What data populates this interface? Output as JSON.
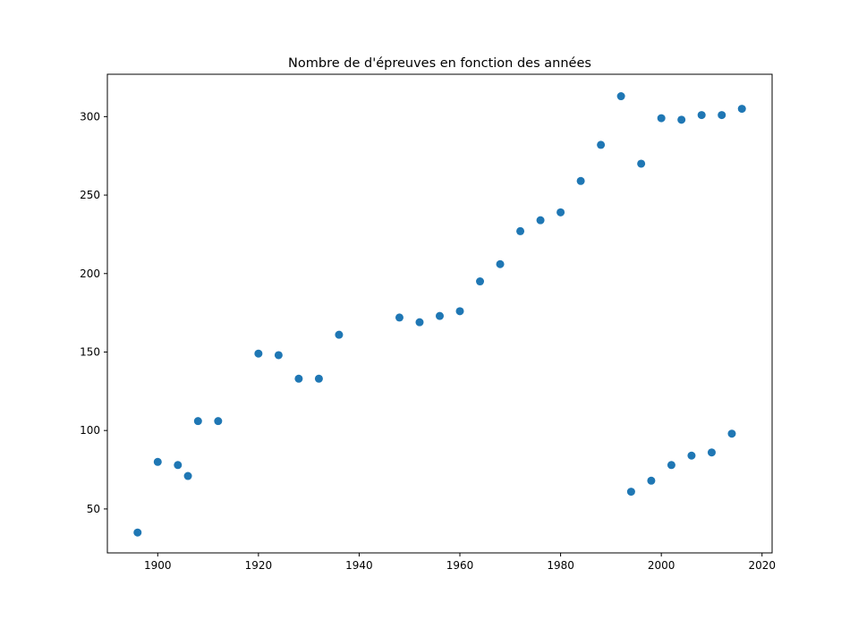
{
  "chart_data": {
    "type": "scatter",
    "title": "Nombre de d'épreuves en fonction des années",
    "xlabel": "",
    "ylabel": "",
    "xlim": [
      1890,
      2022
    ],
    "ylim": [
      22,
      327
    ],
    "x_ticks": [
      1900,
      1920,
      1940,
      1960,
      1980,
      2000,
      2020
    ],
    "y_ticks": [
      50,
      100,
      150,
      200,
      250,
      300
    ],
    "grid": false,
    "legend": "none",
    "marker_color": "#1f77b4",
    "series": [
      {
        "points": [
          {
            "x": 1896,
            "y": 35
          },
          {
            "x": 1900,
            "y": 80
          },
          {
            "x": 1904,
            "y": 78
          },
          {
            "x": 1906,
            "y": 71
          },
          {
            "x": 1908,
            "y": 106
          },
          {
            "x": 1912,
            "y": 106
          },
          {
            "x": 1920,
            "y": 149
          },
          {
            "x": 1924,
            "y": 148
          },
          {
            "x": 1928,
            "y": 133
          },
          {
            "x": 1932,
            "y": 133
          },
          {
            "x": 1936,
            "y": 161
          },
          {
            "x": 1948,
            "y": 172
          },
          {
            "x": 1952,
            "y": 169
          },
          {
            "x": 1956,
            "y": 173
          },
          {
            "x": 1960,
            "y": 176
          },
          {
            "x": 1964,
            "y": 195
          },
          {
            "x": 1968,
            "y": 206
          },
          {
            "x": 1972,
            "y": 227
          },
          {
            "x": 1976,
            "y": 234
          },
          {
            "x": 1980,
            "y": 239
          },
          {
            "x": 1984,
            "y": 259
          },
          {
            "x": 1988,
            "y": 282
          },
          {
            "x": 1992,
            "y": 313
          },
          {
            "x": 1994,
            "y": 61
          },
          {
            "x": 1996,
            "y": 270
          },
          {
            "x": 1998,
            "y": 68
          },
          {
            "x": 2000,
            "y": 299
          },
          {
            "x": 2002,
            "y": 78
          },
          {
            "x": 2004,
            "y": 298
          },
          {
            "x": 2006,
            "y": 84
          },
          {
            "x": 2008,
            "y": 301
          },
          {
            "x": 2010,
            "y": 86
          },
          {
            "x": 2012,
            "y": 301
          },
          {
            "x": 2014,
            "y": 98
          },
          {
            "x": 2016,
            "y": 305
          }
        ]
      }
    ]
  }
}
